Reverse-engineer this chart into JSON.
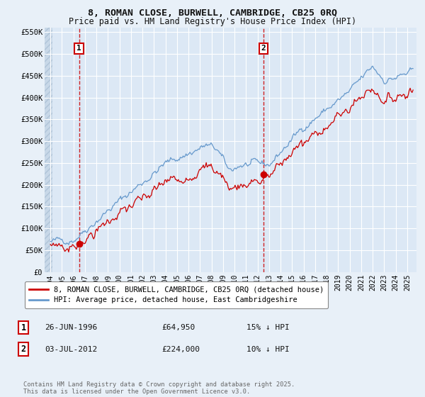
{
  "title_line1": "8, ROMAN CLOSE, BURWELL, CAMBRIDGE, CB25 0RQ",
  "title_line2": "Price paid vs. HM Land Registry's House Price Index (HPI)",
  "background_color": "#e8f0f8",
  "plot_bg_color": "#dce8f5",
  "grid_color": "#ffffff",
  "red_line_color": "#cc0000",
  "blue_line_color": "#6699cc",
  "annotation1_date": "26-JUN-1996",
  "annotation1_price": "£64,950",
  "annotation1_hpi": "15% ↓ HPI",
  "annotation2_date": "03-JUL-2012",
  "annotation2_price": "£224,000",
  "annotation2_hpi": "10% ↓ HPI",
  "sale1_x": 1996.49,
  "sale1_y": 64950,
  "sale2_x": 2012.5,
  "sale2_y": 224000,
  "xmin": 1993.5,
  "xmax": 2025.8,
  "ymin": 0,
  "ymax": 560000,
  "yticks": [
    0,
    50000,
    100000,
    150000,
    200000,
    250000,
    300000,
    350000,
    400000,
    450000,
    500000,
    550000
  ],
  "ytick_labels": [
    "£0",
    "£50K",
    "£100K",
    "£150K",
    "£200K",
    "£250K",
    "£300K",
    "£350K",
    "£400K",
    "£450K",
    "£500K",
    "£550K"
  ],
  "xticks": [
    1994,
    1995,
    1996,
    1997,
    1998,
    1999,
    2000,
    2001,
    2002,
    2003,
    2004,
    2005,
    2006,
    2007,
    2008,
    2009,
    2010,
    2011,
    2012,
    2013,
    2014,
    2015,
    2016,
    2017,
    2018,
    2019,
    2020,
    2021,
    2022,
    2023,
    2024,
    2025
  ],
  "footer": "Contains HM Land Registry data © Crown copyright and database right 2025.\nThis data is licensed under the Open Government Licence v3.0.",
  "legend_label1": "8, ROMAN CLOSE, BURWELL, CAMBRIDGE, CB25 0RQ (detached house)",
  "legend_label2": "HPI: Average price, detached house, East Cambridgeshire"
}
